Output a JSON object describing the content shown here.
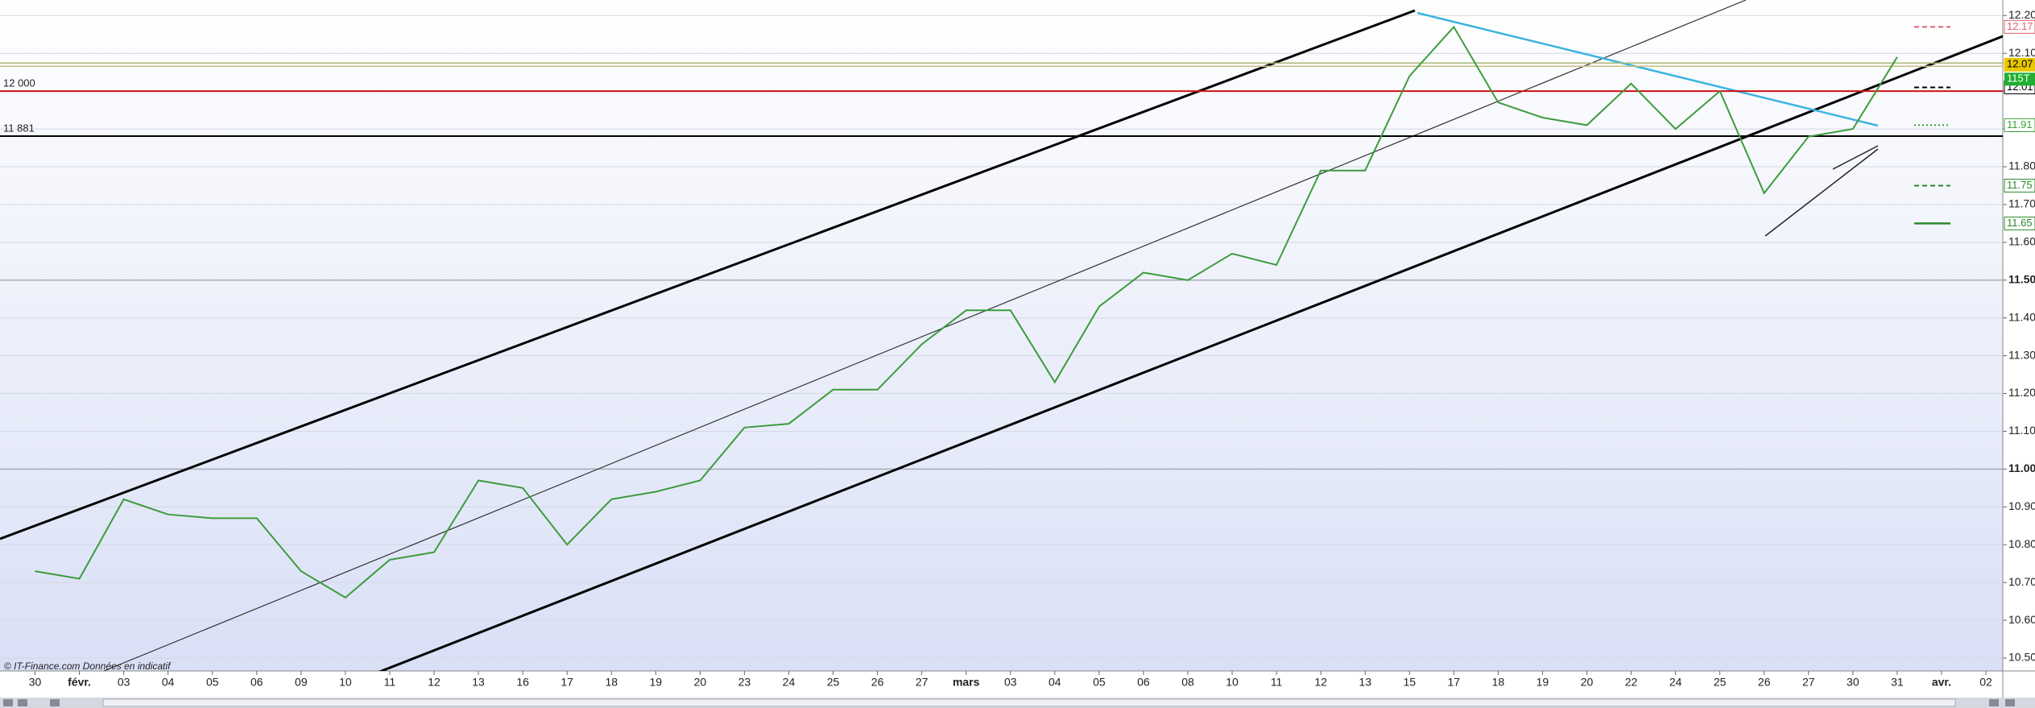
{
  "chart_data": {
    "type": "line",
    "categories": [
      "30",
      "févr.",
      "03",
      "04",
      "05",
      "06",
      "09",
      "10",
      "11",
      "12",
      "13",
      "16",
      "17",
      "18",
      "19",
      "20",
      "23",
      "24",
      "25",
      "26",
      "27",
      "mars",
      "03",
      "04",
      "05",
      "06",
      "08",
      "10",
      "11",
      "12",
      "13",
      "15",
      "17",
      "18",
      "19",
      "20",
      "22",
      "24",
      "25",
      "26",
      "27",
      "30",
      "31",
      "avr.",
      "02"
    ],
    "values": [
      10.73,
      10.71,
      10.92,
      10.88,
      10.87,
      10.87,
      10.73,
      10.66,
      10.76,
      10.78,
      10.97,
      10.95,
      10.8,
      10.92,
      10.94,
      10.97,
      11.11,
      11.12,
      11.21,
      11.21,
      11.33,
      11.42,
      11.42,
      11.23,
      11.43,
      11.52,
      11.5,
      11.57,
      11.54,
      11.79,
      11.79,
      12.04,
      12.17,
      11.97,
      11.93,
      11.91,
      12.02,
      11.9,
      12.0,
      11.73,
      11.88,
      11.9,
      12.09,
      null,
      null
    ],
    "color": "#3c9c3c",
    "ylim": [
      10.5,
      12.2
    ],
    "yticks": [
      {
        "value": 10.5,
        "label": "10.50"
      },
      {
        "value": 10.6,
        "label": "10.60"
      },
      {
        "value": 10.7,
        "label": "10.70"
      },
      {
        "value": 10.8,
        "label": "10.80"
      },
      {
        "value": 10.9,
        "label": "10.90"
      },
      {
        "value": 11,
        "label": "11.00"
      },
      {
        "value": 11.1,
        "label": "11.10"
      },
      {
        "value": 11.2,
        "label": "11.20"
      },
      {
        "value": 11.3,
        "label": "11.30"
      },
      {
        "value": 11.4,
        "label": "11.40"
      },
      {
        "value": 11.5,
        "label": "11.50"
      },
      {
        "value": 11.6,
        "label": "11.60"
      },
      {
        "value": 11.7,
        "label": "11.70"
      },
      {
        "value": 11.8,
        "label": "11.80"
      },
      {
        "value": 11.9,
        "label": "11.90"
      },
      {
        "value": 12,
        "label": "12.00"
      },
      {
        "value": 12.1,
        "label": "12.10"
      },
      {
        "value": 12.2,
        "label": "12.20"
      }
    ],
    "bold_ticks": [
      11,
      11.5
    ],
    "grid": true,
    "levels": [
      {
        "value": 12.0,
        "label": "12 000",
        "color": "#d01010"
      },
      {
        "value": 11.881,
        "label": "11 881",
        "color": "#000000"
      }
    ],
    "price_tags": [
      {
        "value": 12.17,
        "label": "12.17",
        "color": "#e06070",
        "marker": "dashed"
      },
      {
        "value": 12.07,
        "label": "12.07",
        "color": "#e8c800",
        "marker": "full"
      },
      {
        "value": 12.01,
        "label": "12.01",
        "color": "#000000",
        "marker": "dashed"
      },
      {
        "value": 11.91,
        "label": "11.91",
        "color": "#3ca03c",
        "marker": "dotted"
      },
      {
        "value": 11.75,
        "label": "11.75",
        "color": "#2a8a2a",
        "marker": "dashed"
      },
      {
        "value": 11.65,
        "label": "11.65",
        "color": "#2a8a2a",
        "marker": "solid"
      }
    ],
    "volume_label": "115T",
    "footer": "© IT-Finance.com  Données en indicatif"
  }
}
